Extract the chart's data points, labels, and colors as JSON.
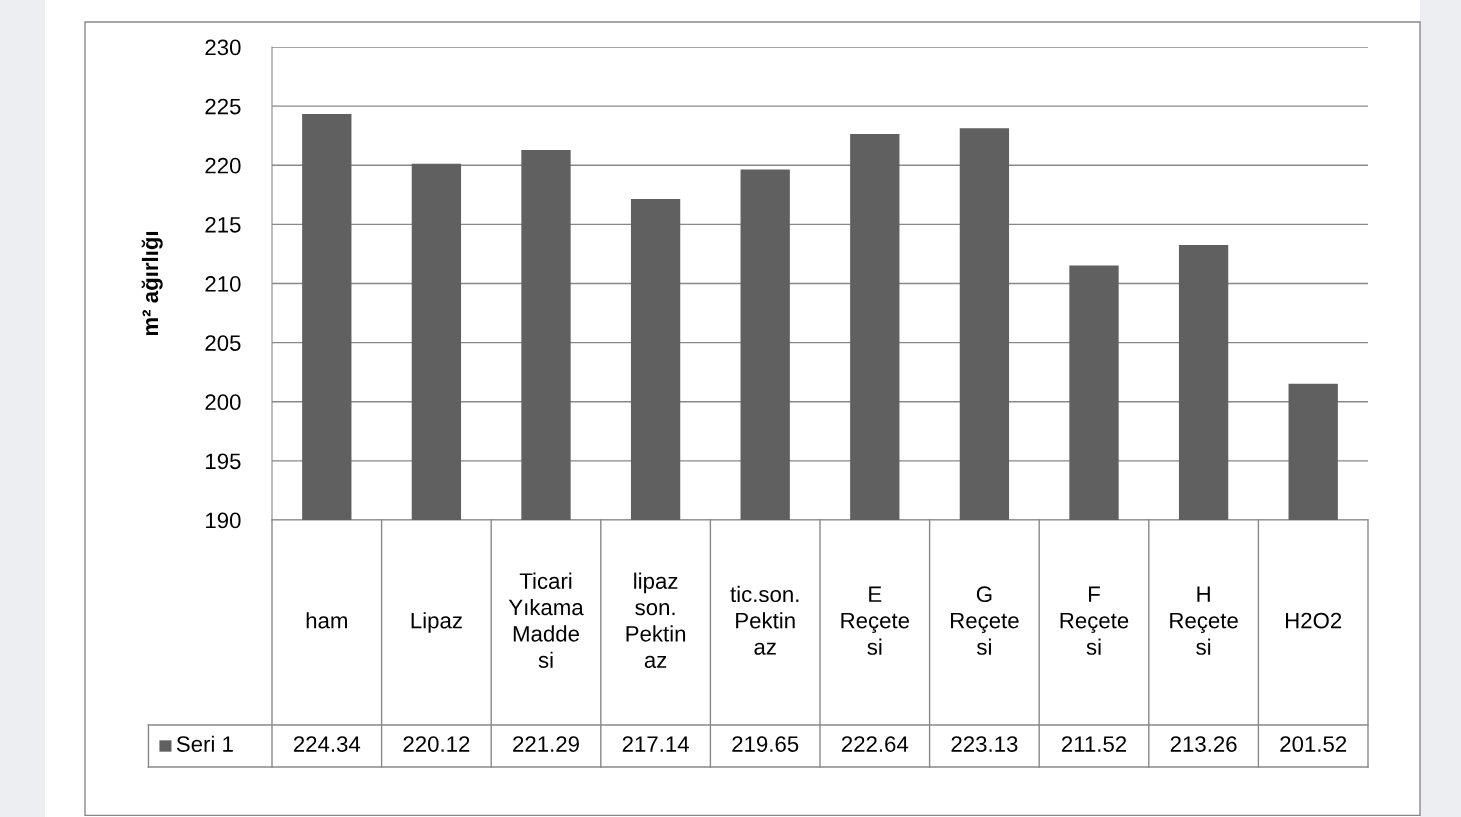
{
  "chart_data": {
    "type": "bar",
    "ylabel": "m² ağırlığı",
    "categories": [
      "ham",
      "Lipaz",
      "Ticari\nYıkama\nMadde\nsi",
      "lipaz\nson.\nPektin\naz",
      "tic.son.\nPektin\naz",
      "E\nReçete\nsi",
      "G\nReçete\nsi",
      "F\nReçete\nsi",
      "H\nReçete\nsi",
      "H2O2"
    ],
    "series": [
      {
        "name": "Seri 1",
        "color": "#606060",
        "values": [
          224.34,
          220.12,
          221.29,
          217.14,
          219.65,
          222.64,
          223.13,
          211.52,
          213.26,
          201.52
        ]
      }
    ],
    "ylim": [
      190,
      230
    ],
    "yticks": [
      190,
      195,
      200,
      205,
      210,
      215,
      220,
      225,
      230
    ],
    "grid": "y",
    "data_labels": true
  }
}
